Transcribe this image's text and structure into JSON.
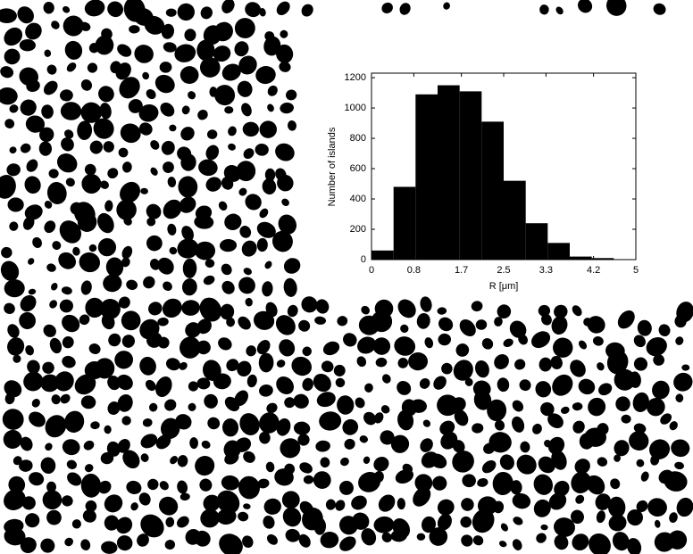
{
  "chart_data": {
    "type": "histogram",
    "xlabel": "R [μm]",
    "ylabel": "Number of islands",
    "bins": [
      0,
      0.417,
      0.833,
      1.25,
      1.667,
      2.083,
      2.5,
      2.917,
      3.333,
      3.75,
      4.167,
      4.583,
      5
    ],
    "values": [
      60,
      480,
      1090,
      1150,
      1110,
      910,
      520,
      240,
      110,
      20,
      10,
      0
    ],
    "color": "#000000",
    "xlim": [
      0,
      5
    ],
    "xticks": [
      0,
      0.8,
      1.7,
      2.5,
      3.3,
      4.2,
      5
    ],
    "ylim": [
      0,
      1230
    ],
    "yticks": [
      0,
      200,
      400,
      600,
      800,
      1000,
      1200
    ]
  }
}
